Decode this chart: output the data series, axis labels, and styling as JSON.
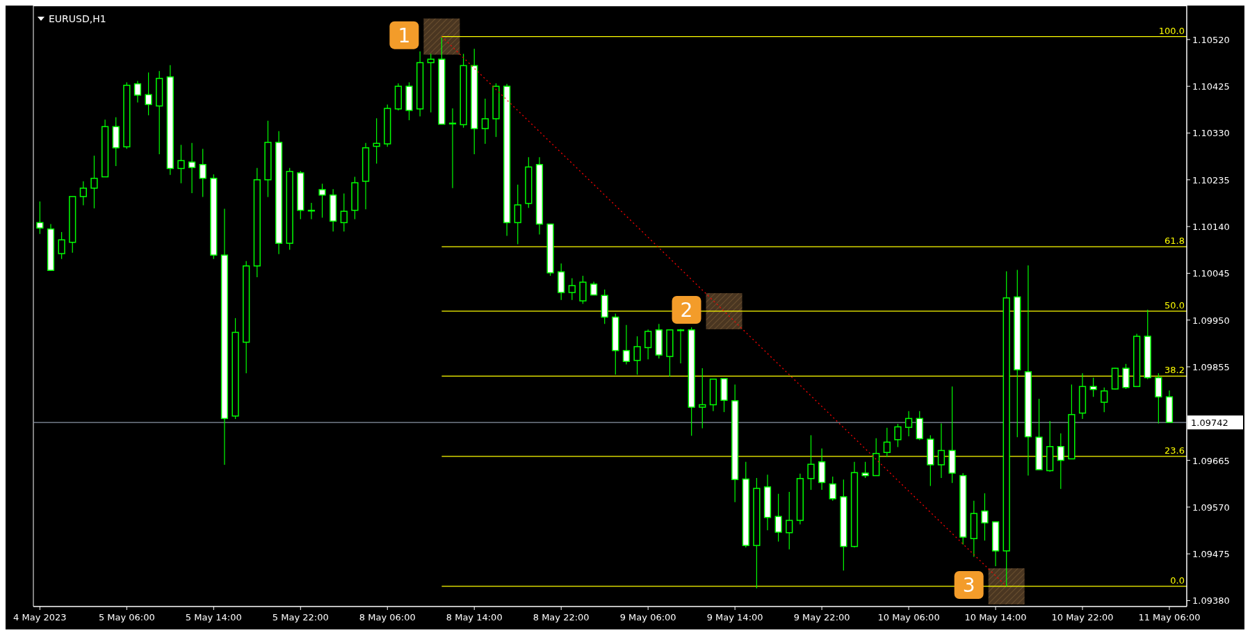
{
  "chart_data": {
    "type": "candlestick",
    "title": "EURUSD,H1",
    "color": "#00ff00",
    "categories": [
      "4 May 2023",
      null,
      null,
      null,
      null,
      null,
      null,
      null,
      "5 May 06:00",
      null,
      null,
      null,
      null,
      null,
      null,
      null,
      "5 May 14:00",
      null,
      null,
      null,
      null,
      null,
      null,
      null,
      "5 May 22:00",
      null,
      null,
      null,
      null,
      null,
      null,
      null,
      "8 May 06:00",
      null,
      null,
      null,
      null,
      null,
      null,
      null,
      "8 May 14:00",
      null,
      null,
      null,
      null,
      null,
      null,
      null,
      "8 May 22:00",
      null,
      null,
      null,
      null,
      null,
      null,
      null,
      "9 May 06:00",
      null,
      null,
      null,
      null,
      null,
      null,
      null,
      "9 May 14:00",
      null,
      null,
      null,
      null,
      null,
      null,
      null,
      "9 May 22:00",
      null,
      null,
      null,
      null,
      null,
      null,
      null,
      "10 May 06:00",
      null,
      null,
      null,
      null,
      null,
      null,
      null,
      "10 May 14:00",
      null,
      null,
      null,
      null,
      null,
      null,
      null,
      "10 May 22:00",
      null,
      null,
      null,
      null,
      null,
      null,
      null,
      "11 May 06:00"
    ],
    "ohlc": [
      [
        1.10148,
        1.10191,
        1.10125,
        1.10137
      ],
      [
        1.10135,
        1.10145,
        1.10051,
        1.10051
      ],
      [
        1.10085,
        1.10129,
        1.10074,
        1.10113
      ],
      [
        1.10108,
        1.10201,
        1.10087,
        1.10201
      ],
      [
        1.10201,
        1.10232,
        1.10183,
        1.10218
      ],
      [
        1.10218,
        1.10284,
        1.10177,
        1.10238
      ],
      [
        1.10241,
        1.10357,
        1.10241,
        1.10343
      ],
      [
        1.10343,
        1.10362,
        1.10263,
        1.103
      ],
      [
        1.10302,
        1.10433,
        1.10298,
        1.10427
      ],
      [
        1.1043,
        1.10436,
        1.10392,
        1.10407
      ],
      [
        1.10408,
        1.10453,
        1.10366,
        1.10388
      ],
      [
        1.10385,
        1.10456,
        1.10287,
        1.10441
      ],
      [
        1.10444,
        1.10468,
        1.10245,
        1.10258
      ],
      [
        1.10258,
        1.10306,
        1.10228,
        1.10274
      ],
      [
        1.10271,
        1.1031,
        1.10208,
        1.1026
      ],
      [
        1.10266,
        1.10298,
        1.102,
        1.10238
      ],
      [
        1.10238,
        1.10246,
        1.10074,
        1.10082
      ],
      [
        1.10082,
        1.10176,
        1.09656,
        1.0975
      ],
      [
        1.09755,
        1.09954,
        1.09749,
        1.09925
      ],
      [
        1.09905,
        1.1007,
        1.09842,
        1.1006
      ],
      [
        1.1006,
        1.10259,
        1.10037,
        1.10235
      ],
      [
        1.10235,
        1.10355,
        1.102,
        1.10311
      ],
      [
        1.10311,
        1.10334,
        1.10084,
        1.10106
      ],
      [
        1.10106,
        1.10259,
        1.10093,
        1.10252
      ],
      [
        1.10249,
        1.10253,
        1.10155,
        1.10173
      ],
      [
        1.10173,
        1.10188,
        1.10155,
        1.10173
      ],
      [
        1.10215,
        1.10227,
        1.10158,
        1.10204
      ],
      [
        1.10204,
        1.10216,
        1.1013,
        1.10151
      ],
      [
        1.10148,
        1.10207,
        1.1013,
        1.10171
      ],
      [
        1.10173,
        1.10241,
        1.10155,
        1.10229
      ],
      [
        1.10232,
        1.1031,
        1.10175,
        1.103
      ],
      [
        1.10303,
        1.1036,
        1.10268,
        1.10309
      ],
      [
        1.10308,
        1.10388,
        1.10302,
        1.1038
      ],
      [
        1.10379,
        1.10431,
        1.10376,
        1.10425
      ],
      [
        1.10425,
        1.10433,
        1.10356,
        1.10376
      ],
      [
        1.10379,
        1.10496,
        1.10364,
        1.10473
      ],
      [
        1.10473,
        1.10491,
        1.10372,
        1.1048
      ],
      [
        1.1048,
        1.10526,
        1.10348,
        1.10348
      ],
      [
        1.1035,
        1.1038,
        1.10218,
        1.1035
      ],
      [
        1.10347,
        1.10491,
        1.10341,
        1.10467
      ],
      [
        1.10467,
        1.10501,
        1.10287,
        1.10339
      ],
      [
        1.10339,
        1.104,
        1.10308,
        1.10359
      ],
      [
        1.10359,
        1.10431,
        1.10322,
        1.10425
      ],
      [
        1.10425,
        1.1043,
        1.10121,
        1.10148
      ],
      [
        1.10148,
        1.10225,
        1.10104,
        1.10184
      ],
      [
        1.10187,
        1.10281,
        1.10178,
        1.10261
      ],
      [
        1.10266,
        1.10281,
        1.10124,
        1.10145
      ],
      [
        1.10145,
        1.10145,
        1.1004,
        1.10046
      ],
      [
        1.10048,
        1.10065,
        1.09991,
        1.10006
      ],
      [
        1.10006,
        1.10035,
        1.09991,
        1.1002
      ],
      [
        1.09989,
        1.1004,
        1.09983,
        1.10027
      ],
      [
        1.10023,
        1.10028,
        1.10001,
        1.10001
      ],
      [
        1.1,
        1.10012,
        1.09942,
        1.09956
      ],
      [
        1.09956,
        1.09963,
        1.09839,
        1.09888
      ],
      [
        1.09888,
        1.0994,
        1.0986,
        1.09866
      ],
      [
        1.09868,
        1.09917,
        1.09839,
        1.09896
      ],
      [
        1.09894,
        1.09931,
        1.0987,
        1.09927
      ],
      [
        1.0993,
        1.09942,
        1.09872,
        1.09879
      ],
      [
        1.09876,
        1.0993,
        1.09835,
        1.0993
      ],
      [
        1.0993,
        1.09932,
        1.09862,
        1.0993
      ],
      [
        1.0993,
        1.09935,
        1.09715,
        1.09773
      ],
      [
        1.09773,
        1.09852,
        1.0973,
        1.09778
      ],
      [
        1.09778,
        1.0983,
        1.09765,
        1.0983
      ],
      [
        1.09831,
        1.09831,
        1.09763,
        1.09787
      ],
      [
        1.09786,
        1.09819,
        1.0958,
        1.09626
      ],
      [
        1.09627,
        1.09662,
        1.09488,
        1.09492
      ],
      [
        1.09492,
        1.09629,
        1.09405,
        1.09608
      ],
      [
        1.09611,
        1.09636,
        1.09523,
        1.09549
      ],
      [
        1.09551,
        1.09597,
        1.095,
        1.09519
      ],
      [
        1.09518,
        1.09601,
        1.09484,
        1.09543
      ],
      [
        1.09543,
        1.09638,
        1.09535,
        1.09628
      ],
      [
        1.09628,
        1.09716,
        1.09605,
        1.09657
      ],
      [
        1.09662,
        1.09689,
        1.09605,
        1.0962
      ],
      [
        1.09617,
        1.09632,
        1.09583,
        1.09587
      ],
      [
        1.09591,
        1.09626,
        1.09441,
        1.0949
      ],
      [
        1.0949,
        1.09662,
        1.09488,
        1.0964
      ],
      [
        1.09639,
        1.09662,
        1.09629,
        1.09634
      ],
      [
        1.09634,
        1.0971,
        1.09634,
        1.09679
      ],
      [
        1.09681,
        1.09731,
        1.09672,
        1.09702
      ],
      [
        1.09707,
        1.09739,
        1.09692,
        1.09733
      ],
      [
        1.09732,
        1.09765,
        1.09714,
        1.0975
      ],
      [
        1.0975,
        1.09765,
        1.09706,
        1.09709
      ],
      [
        1.09708,
        1.09716,
        1.09613,
        1.09656
      ],
      [
        1.09656,
        1.0974,
        1.09629,
        1.09685
      ],
      [
        1.09685,
        1.09815,
        1.09619,
        1.09639
      ],
      [
        1.09634,
        1.09639,
        1.09494,
        1.09509
      ],
      [
        1.09506,
        1.09583,
        1.09469,
        1.09557
      ],
      [
        1.09562,
        1.09598,
        1.09502,
        1.09538
      ],
      [
        1.0954,
        1.0954,
        1.0945,
        1.09481
      ],
      [
        1.09481,
        1.10049,
        1.09409,
        1.09995
      ],
      [
        1.09997,
        1.10052,
        1.09712,
        1.09849
      ],
      [
        1.09845,
        1.10061,
        1.09634,
        1.09713
      ],
      [
        1.09712,
        1.0979,
        1.09646,
        1.09646
      ],
      [
        1.09644,
        1.09745,
        1.09642,
        1.09693
      ],
      [
        1.09693,
        1.0972,
        1.09607,
        1.09665
      ],
      [
        1.09668,
        1.09819,
        1.09668,
        1.09758
      ],
      [
        1.09761,
        1.09842,
        1.09749,
        1.09815
      ],
      [
        1.09815,
        1.09833,
        1.09794,
        1.09809
      ],
      [
        1.09783,
        1.09813,
        1.09763,
        1.09806
      ],
      [
        1.0981,
        1.09853,
        1.09809,
        1.09852
      ],
      [
        1.09852,
        1.09861,
        1.0981,
        1.09813
      ],
      [
        1.09815,
        1.09922,
        1.09815,
        1.09917
      ],
      [
        1.09917,
        1.09971,
        1.0983,
        1.09833
      ],
      [
        1.09833,
        1.09842,
        1.0974,
        1.09794
      ],
      [
        1.09794,
        1.09807,
        1.09742,
        1.09742
      ]
    ],
    "series": [
      {
        "type": "line",
        "color": "#ff0000",
        "values": [
          null,
          null,
          null,
          null,
          null,
          null,
          null,
          null,
          null,
          null,
          null,
          null,
          null,
          null,
          null,
          null,
          null,
          null,
          null,
          null,
          null,
          null,
          null,
          null,
          null,
          null,
          null,
          null,
          null,
          null,
          null,
          null,
          null,
          null,
          null,
          null,
          null,
          1.10526,
          null,
          null,
          null,
          null,
          null,
          null,
          null,
          null,
          null,
          null,
          null,
          null,
          null,
          null,
          null,
          null,
          null,
          null,
          null,
          null,
          null,
          null,
          null,
          null,
          null,
          1.09968,
          null,
          null,
          null,
          null,
          null,
          null,
          null,
          null,
          null,
          null,
          null,
          null,
          null,
          null,
          null,
          null,
          null,
          null,
          null,
          null,
          null,
          null,
          null,
          null,
          null,
          1.09409,
          null,
          null,
          null,
          null,
          null,
          null,
          null,
          null,
          null,
          null,
          null,
          null,
          null,
          null,
          null
        ]
      }
    ],
    "line_style": "dotted",
    "ylim": [
      1.09368,
      1.10589
    ],
    "yticks": [
      {
        "value": 1.0938,
        "label": "1.09380"
      },
      1.09475,
      {
        "value": 1.0957,
        "label": "1.09570"
      },
      1.09665,
      1.09855,
      {
        "value": 1.0995,
        "label": "1.09950"
      },
      1.10045,
      {
        "value": 1.1014,
        "label": "1.10140"
      },
      1.10235,
      {
        "value": 1.1033,
        "label": "1.10330"
      },
      1.10425,
      {
        "value": 1.1052,
        "label": "1.10520"
      }
    ],
    "ref_lines": [
      {
        "axis": "y",
        "value": 1.10526,
        "color": "#ffff00"
      },
      {
        "axis": "y",
        "value": 1.10099,
        "color": "#ffff00"
      },
      {
        "axis": "y",
        "value": 1.09968,
        "color": "#ffff00"
      },
      {
        "axis": "y",
        "value": 1.09836,
        "color": "#ffff00"
      },
      {
        "axis": "y",
        "value": 1.09673,
        "color": "#ffff00"
      },
      {
        "axis": "y",
        "value": 1.09409,
        "color": "#ffff00"
      },
      {
        "axis": "y",
        "value": 1.09742,
        "label": "1.09742",
        "color": "#8a95a5"
      }
    ],
    "annotations": [
      {
        "text": "1",
        "y": 1.10526
      },
      {
        "text": "2",
        "y": 1.09968
      },
      {
        "text": "3",
        "y": 1.09409
      },
      {
        "text": "100.0",
        "y": 1.10526
      },
      {
        "text": "61.8",
        "y": 1.10099
      },
      {
        "text": "50.0",
        "y": 1.09968
      },
      {
        "text": "38.2",
        "y": 1.09836
      },
      {
        "text": "23.6",
        "y": 1.09673
      },
      {
        "text": "0.0",
        "y": 1.09409
      }
    ],
    "grid": false
  }
}
